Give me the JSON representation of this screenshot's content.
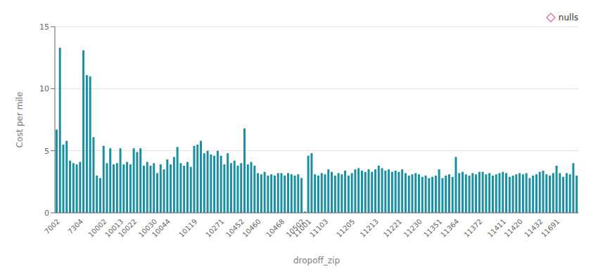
{
  "chart_data": {
    "type": "bar",
    "xlabel": "dropoff_zip",
    "ylabel": "Cost per mile",
    "color": "#1a8fa0",
    "ylim": [
      0,
      15
    ],
    "yticks": [
      0,
      5,
      10,
      15
    ],
    "grid": true,
    "legend": "upper right",
    "categories": [
      "7002",
      null,
      null,
      null,
      null,
      null,
      null,
      "7304",
      null,
      null,
      null,
      null,
      null,
      null,
      "10002",
      null,
      null,
      null,
      null,
      "10013",
      null,
      null,
      null,
      "10022",
      null,
      null,
      null,
      null,
      null,
      "10030",
      null,
      null,
      null,
      "10044",
      null,
      null,
      null,
      null,
      null,
      null,
      null,
      "10119",
      null,
      null,
      null,
      null,
      null,
      null,
      null,
      "10271",
      null,
      null,
      null,
      null,
      null,
      "10452",
      null,
      null,
      null,
      null,
      "10460",
      null,
      null,
      null,
      null,
      null,
      null,
      "10468",
      null,
      null,
      null,
      null,
      null,
      "10502",
      null,
      "11001",
      null,
      null,
      null,
      null,
      "11103",
      null,
      null,
      null,
      null,
      null,
      null,
      null,
      "11205",
      null,
      null,
      null,
      null,
      null,
      null,
      "11213",
      null,
      null,
      null,
      null,
      null,
      null,
      "11221",
      null,
      null,
      null,
      null,
      null,
      "11230",
      null,
      null,
      null,
      null,
      null,
      "11351",
      null,
      null,
      null,
      null,
      "11364",
      null,
      null,
      null,
      null,
      null,
      null,
      "11372",
      null,
      null,
      null,
      null,
      null,
      null,
      "11411",
      null,
      null,
      null,
      null,
      "11420",
      null,
      null,
      null,
      null,
      null,
      "11432",
      null,
      null,
      null,
      null,
      "11691",
      null,
      null,
      null,
      null,
      null,
      null
    ],
    "values": [
      6.7,
      13.3,
      5.5,
      5.8,
      4.2,
      4.0,
      3.9,
      4.1,
      13.1,
      11.1,
      11.0,
      6.1,
      3.0,
      2.8,
      5.4,
      4.0,
      5.2,
      3.9,
      4.0,
      5.2,
      3.9,
      4.1,
      3.9,
      5.2,
      4.9,
      5.2,
      3.8,
      4.1,
      3.8,
      4.0,
      3.2,
      3.9,
      3.5,
      4.3,
      3.9,
      4.5,
      5.3,
      4.0,
      3.8,
      4.1,
      3.7,
      5.4,
      5.5,
      5.8,
      4.8,
      5.0,
      4.7,
      4.6,
      5.0,
      4.6,
      3.9,
      4.8,
      4.0,
      4.2,
      3.8,
      4.0,
      6.8,
      3.9,
      4.1,
      3.8,
      3.2,
      3.1,
      3.3,
      3.0,
      3.1,
      3.0,
      3.2,
      3.2,
      3.0,
      3.2,
      3.1,
      3.0,
      3.1,
      2.8,
      0.1,
      4.6,
      4.8,
      3.1,
      3.0,
      3.2,
      3.1,
      3.5,
      3.3,
      3.0,
      3.2,
      3.1,
      3.4,
      3.0,
      3.2,
      3.5,
      3.6,
      3.4,
      3.3,
      3.5,
      3.3,
      3.5,
      3.8,
      3.6,
      3.4,
      3.5,
      3.3,
      3.4,
      3.3,
      3.5,
      3.2,
      3.0,
      3.1,
      3.2,
      3.1,
      2.9,
      3.0,
      2.8,
      2.9,
      3.0,
      3.5,
      2.8,
      3.0,
      3.1,
      2.9,
      4.5,
      3.2,
      3.3,
      3.1,
      3.0,
      3.2,
      3.1,
      3.3,
      3.3,
      3.1,
      3.2,
      3.0,
      3.1,
      3.2,
      3.3,
      3.2,
      2.9,
      3.0,
      3.1,
      3.2,
      3.1,
      3.2,
      2.8,
      3.0,
      3.1,
      3.3,
      3.4,
      3.1,
      3.0,
      3.2,
      3.8,
      3.2,
      2.9,
      3.2,
      3.1,
      4.0,
      3.0
    ],
    "series": [
      {
        "name": "nulls",
        "color": "#e8799a",
        "marker": "diamond",
        "values": [
          null,
          null,
          null,
          null,
          null,
          null,
          null,
          null,
          null,
          null,
          null,
          null,
          null,
          null,
          null,
          null,
          null,
          null,
          null,
          null,
          null,
          null,
          null,
          null,
          null,
          null,
          null,
          null,
          null,
          null,
          null,
          null,
          null,
          null,
          null,
          null,
          null,
          null,
          null,
          null,
          null,
          null,
          null,
          null,
          null,
          null,
          null,
          null,
          null,
          null,
          null,
          null,
          null,
          null,
          null,
          null,
          null,
          null,
          null,
          null,
          null,
          null,
          null,
          null,
          null,
          null,
          null,
          null,
          null,
          null,
          null,
          null,
          null,
          null,
          null,
          null,
          null,
          null,
          null,
          null,
          null,
          null,
          null,
          null,
          null,
          null,
          null,
          null,
          null,
          null,
          null,
          null,
          null,
          null,
          null,
          null,
          null,
          null,
          null,
          null,
          null,
          null,
          null,
          null,
          null,
          null,
          null,
          null,
          null,
          null,
          null,
          null,
          null,
          null,
          null,
          null,
          null,
          null,
          null,
          null,
          null,
          null,
          null,
          null,
          null,
          null,
          null,
          null,
          null,
          null,
          null,
          null,
          null,
          null,
          null,
          null,
          null,
          null,
          null,
          null,
          null,
          null,
          null,
          null,
          null,
          null,
          null,
          null,
          null,
          null,
          null,
          null,
          null,
          null,
          null,
          null
        ]
      }
    ]
  }
}
